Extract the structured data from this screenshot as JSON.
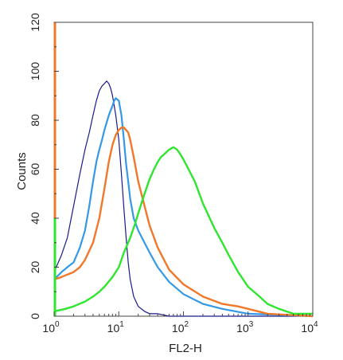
{
  "chart_data": {
    "type": "line",
    "xlabel": "FL2-H",
    "ylabel": "Counts",
    "x_scale": "log",
    "xlim": [
      1,
      10000
    ],
    "ylim": [
      0,
      120
    ],
    "x_ticks": [
      {
        "value": 1,
        "base": "10",
        "exp": "0"
      },
      {
        "value": 10,
        "base": "10",
        "exp": "1"
      },
      {
        "value": 100,
        "base": "10",
        "exp": "2"
      },
      {
        "value": 1000,
        "base": "10",
        "exp": "3"
      },
      {
        "value": 10000,
        "base": "10",
        "exp": "4"
      }
    ],
    "y_ticks": [
      0,
      20,
      40,
      60,
      80,
      100,
      120
    ],
    "series": [
      {
        "color": "#1a1a8c",
        "x": [
          1,
          1.3,
          1.6,
          2,
          2.5,
          3,
          3.5,
          4,
          4.5,
          5,
          5.5,
          6,
          6.5,
          7,
          7.5,
          8,
          8.5,
          9,
          10,
          11,
          12,
          13,
          14,
          15,
          17,
          20,
          25,
          30,
          40,
          60,
          100,
          1000,
          10000
        ],
        "values": [
          18,
          25,
          32,
          45,
          58,
          68,
          75,
          82,
          88,
          92,
          94,
          95,
          96,
          95,
          93,
          90,
          86,
          82,
          72,
          58,
          44,
          32,
          22,
          15,
          8,
          4,
          2,
          1,
          1,
          0,
          0,
          0,
          0
        ]
      },
      {
        "color": "#3399e6",
        "x": [
          1,
          1.3,
          1.6,
          2,
          2.5,
          3,
          3.5,
          4,
          4.5,
          5,
          5.5,
          6,
          7,
          8,
          8.5,
          9,
          10,
          11,
          12,
          13,
          14,
          15,
          17,
          20,
          25,
          30,
          40,
          60,
          100,
          200,
          400,
          1000,
          10000
        ],
        "values": [
          15,
          18,
          20,
          22,
          28,
          35,
          45,
          55,
          63,
          68,
          72,
          76,
          82,
          86,
          88,
          89,
          88,
          82,
          72,
          62,
          55,
          48,
          40,
          35,
          30,
          26,
          20,
          14,
          9,
          5,
          3,
          1,
          0
        ]
      },
      {
        "color": "#f07828",
        "x": [
          1,
          1.3,
          1.6,
          2,
          2.5,
          3,
          4,
          5,
          6,
          7,
          8,
          9,
          10,
          11,
          12,
          13,
          14,
          15,
          17,
          20,
          25,
          30,
          40,
          60,
          100,
          200,
          400,
          700,
          1000,
          2000,
          10000
        ],
        "values": [
          15,
          16,
          17,
          18,
          20,
          23,
          30,
          40,
          52,
          63,
          70,
          74,
          76,
          77,
          77,
          76,
          75,
          72,
          65,
          55,
          45,
          37,
          28,
          19,
          13,
          8,
          5,
          4,
          3,
          1,
          0
        ]
      },
      {
        "color": "#2ee62e",
        "x": [
          1,
          1.5,
          2,
          3,
          4,
          5,
          6,
          8,
          10,
          12,
          15,
          18,
          20,
          25,
          30,
          35,
          40,
          45,
          50,
          60,
          70,
          80,
          90,
          100,
          120,
          150,
          200,
          300,
          400,
          500,
          700,
          1000,
          1500,
          2000,
          3000,
          5000,
          10000
        ],
        "values": [
          2,
          3,
          4,
          6,
          8,
          10,
          12,
          16,
          20,
          26,
          32,
          38,
          42,
          50,
          56,
          60,
          63,
          65,
          66,
          68,
          69,
          68,
          66,
          64,
          60,
          55,
          46,
          36,
          30,
          25,
          18,
          12,
          8,
          5,
          3,
          1,
          1
        ]
      }
    ]
  }
}
